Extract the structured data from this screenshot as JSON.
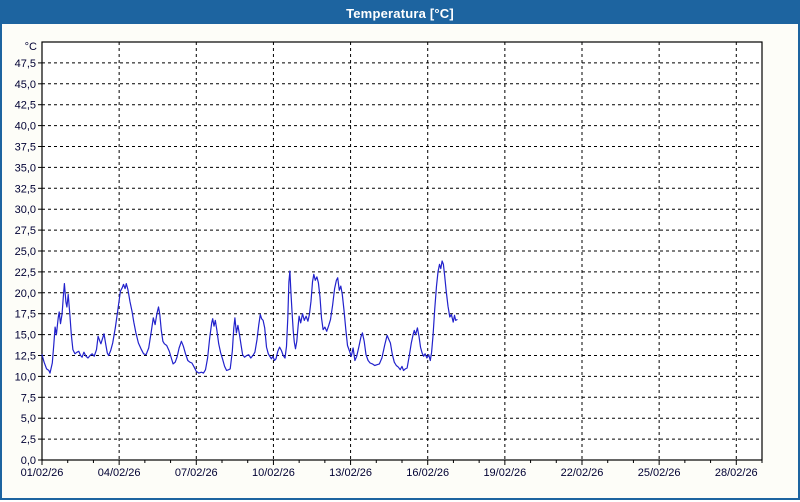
{
  "window": {
    "title": "Temperatura [°C]"
  },
  "colors": {
    "accent": "#1d64a0",
    "title_text": "#ffffff",
    "series_line": "#2222cc",
    "grid": "#000000",
    "frame": "#000000",
    "axis_label": "#000033",
    "panel_bg": "#fdfdf8",
    "plot_bg": "#ffffff"
  },
  "chart_data": {
    "type": "line",
    "title": "Temperatura [°C]",
    "xlabel": "",
    "ylabel": "°C",
    "grid": "dashed",
    "legend": "none",
    "y_axis": {
      "min": 0,
      "max": 50,
      "tick_step": 2.5,
      "unit_label": "°C",
      "tick_labels": [
        "0,0",
        "2,5",
        "5,0",
        "7,5",
        "10,0",
        "12,5",
        "15,0",
        "17,5",
        "20,0",
        "22,5",
        "25,0",
        "27,5",
        "30,0",
        "32,5",
        "35,0",
        "37,5",
        "40,0",
        "42,5",
        "45,0",
        "47,5"
      ]
    },
    "x_axis": {
      "span_days": 28,
      "major_tick_every_days": 3,
      "minor_tick_every_days": 1,
      "tick_labels": [
        "01/02/26",
        "04/02/26",
        "07/02/26",
        "10/02/26",
        "13/02/26",
        "16/02/26",
        "19/02/26",
        "22/02/26",
        "25/02/26",
        "28/02/26"
      ]
    },
    "series": [
      {
        "name": "Temperatura",
        "units": "°C",
        "points_format": "[days_since_01_02_26, celsius]",
        "points": [
          [
            0.0,
            12.6
          ],
          [
            0.08,
            11.7
          ],
          [
            0.18,
            10.9
          ],
          [
            0.27,
            10.7
          ],
          [
            0.31,
            10.4
          ],
          [
            0.4,
            11.6
          ],
          [
            0.46,
            13.8
          ],
          [
            0.51,
            15.9
          ],
          [
            0.56,
            15.0
          ],
          [
            0.63,
            17.0
          ],
          [
            0.67,
            17.7
          ],
          [
            0.72,
            16.3
          ],
          [
            0.78,
            17.5
          ],
          [
            0.83,
            19.5
          ],
          [
            0.87,
            21.1
          ],
          [
            0.93,
            18.9
          ],
          [
            0.97,
            18.3
          ],
          [
            1.02,
            19.8
          ],
          [
            1.08,
            17.5
          ],
          [
            1.14,
            15.0
          ],
          [
            1.2,
            13.2
          ],
          [
            1.28,
            12.7
          ],
          [
            1.36,
            12.9
          ],
          [
            1.43,
            13.0
          ],
          [
            1.5,
            12.5
          ],
          [
            1.56,
            12.3
          ],
          [
            1.63,
            12.9
          ],
          [
            1.71,
            12.4
          ],
          [
            1.79,
            12.2
          ],
          [
            1.87,
            12.5
          ],
          [
            1.95,
            12.7
          ],
          [
            2.03,
            12.4
          ],
          [
            2.12,
            13.2
          ],
          [
            2.18,
            14.8
          ],
          [
            2.25,
            14.2
          ],
          [
            2.29,
            13.9
          ],
          [
            2.36,
            14.6
          ],
          [
            2.41,
            15.1
          ],
          [
            2.48,
            13.8
          ],
          [
            2.54,
            12.8
          ],
          [
            2.59,
            12.5
          ],
          [
            2.67,
            13.1
          ],
          [
            2.75,
            14.0
          ],
          [
            2.85,
            15.8
          ],
          [
            2.95,
            18.0
          ],
          [
            3.05,
            20.2
          ],
          [
            3.12,
            20.6
          ],
          [
            3.17,
            21.0
          ],
          [
            3.23,
            20.5
          ],
          [
            3.28,
            21.1
          ],
          [
            3.34,
            20.4
          ],
          [
            3.42,
            19.0
          ],
          [
            3.5,
            17.8
          ],
          [
            3.57,
            16.5
          ],
          [
            3.65,
            15.2
          ],
          [
            3.75,
            14.0
          ],
          [
            3.85,
            13.3
          ],
          [
            3.95,
            12.7
          ],
          [
            4.05,
            12.6
          ],
          [
            4.15,
            13.4
          ],
          [
            4.25,
            15.4
          ],
          [
            4.33,
            17.0
          ],
          [
            4.4,
            16.2
          ],
          [
            4.47,
            17.5
          ],
          [
            4.53,
            18.3
          ],
          [
            4.58,
            17.4
          ],
          [
            4.64,
            15.5
          ],
          [
            4.7,
            14.2
          ],
          [
            4.76,
            13.9
          ],
          [
            4.85,
            13.7
          ],
          [
            4.95,
            13.0
          ],
          [
            5.03,
            12.2
          ],
          [
            5.1,
            11.5
          ],
          [
            5.18,
            11.7
          ],
          [
            5.25,
            12.3
          ],
          [
            5.33,
            13.4
          ],
          [
            5.42,
            14.2
          ],
          [
            5.5,
            13.6
          ],
          [
            5.58,
            12.7
          ],
          [
            5.67,
            11.9
          ],
          [
            5.75,
            11.7
          ],
          [
            5.83,
            11.6
          ],
          [
            5.92,
            11.1
          ],
          [
            6.0,
            10.6
          ],
          [
            6.1,
            10.4
          ],
          [
            6.2,
            10.5
          ],
          [
            6.28,
            10.4
          ],
          [
            6.36,
            10.8
          ],
          [
            6.44,
            12.2
          ],
          [
            6.52,
            14.6
          ],
          [
            6.6,
            16.4
          ],
          [
            6.64,
            16.9
          ],
          [
            6.69,
            16.0
          ],
          [
            6.74,
            16.7
          ],
          [
            6.8,
            15.5
          ],
          [
            6.87,
            13.9
          ],
          [
            6.95,
            12.8
          ],
          [
            7.02,
            12.1
          ],
          [
            7.1,
            11.2
          ],
          [
            7.18,
            10.7
          ],
          [
            7.26,
            10.8
          ],
          [
            7.32,
            10.9
          ],
          [
            7.4,
            13.0
          ],
          [
            7.46,
            15.8
          ],
          [
            7.5,
            17.0
          ],
          [
            7.56,
            15.2
          ],
          [
            7.62,
            16.1
          ],
          [
            7.68,
            15.0
          ],
          [
            7.74,
            13.8
          ],
          [
            7.8,
            12.6
          ],
          [
            7.88,
            12.3
          ],
          [
            7.96,
            12.5
          ],
          [
            8.04,
            12.6
          ],
          [
            8.12,
            12.2
          ],
          [
            8.2,
            12.5
          ],
          [
            8.28,
            12.9
          ],
          [
            8.36,
            14.4
          ],
          [
            8.43,
            16.2
          ],
          [
            8.49,
            17.4
          ],
          [
            8.54,
            16.9
          ],
          [
            8.6,
            16.7
          ],
          [
            8.66,
            15.8
          ],
          [
            8.73,
            13.5
          ],
          [
            8.8,
            12.7
          ],
          [
            8.86,
            12.4
          ],
          [
            8.92,
            12.1
          ],
          [
            8.98,
            12.4
          ],
          [
            9.04,
            11.9
          ],
          [
            9.1,
            12.1
          ],
          [
            9.17,
            13.0
          ],
          [
            9.24,
            13.5
          ],
          [
            9.31,
            13.1
          ],
          [
            9.38,
            12.5
          ],
          [
            9.45,
            12.2
          ],
          [
            9.51,
            13.6
          ],
          [
            9.56,
            17.0
          ],
          [
            9.6,
            21.3
          ],
          [
            9.64,
            22.6
          ],
          [
            9.68,
            20.1
          ],
          [
            9.72,
            18.0
          ],
          [
            9.77,
            15.5
          ],
          [
            9.81,
            14.1
          ],
          [
            9.86,
            13.3
          ],
          [
            9.91,
            14.2
          ],
          [
            9.96,
            16.0
          ],
          [
            10.0,
            17.2
          ],
          [
            10.06,
            16.4
          ],
          [
            10.13,
            17.5
          ],
          [
            10.2,
            16.7
          ],
          [
            10.27,
            17.2
          ],
          [
            10.34,
            16.6
          ],
          [
            10.4,
            17.4
          ],
          [
            10.46,
            19.0
          ],
          [
            10.52,
            21.3
          ],
          [
            10.57,
            22.2
          ],
          [
            10.63,
            21.5
          ],
          [
            10.69,
            21.9
          ],
          [
            10.75,
            21.2
          ],
          [
            10.81,
            19.5
          ],
          [
            10.87,
            17.0
          ],
          [
            10.93,
            15.6
          ],
          [
            11.0,
            15.9
          ],
          [
            11.07,
            15.4
          ],
          [
            11.14,
            16.0
          ],
          [
            11.22,
            16.8
          ],
          [
            11.3,
            18.5
          ],
          [
            11.38,
            20.5
          ],
          [
            11.45,
            21.5
          ],
          [
            11.5,
            21.8
          ],
          [
            11.56,
            20.3
          ],
          [
            11.62,
            20.8
          ],
          [
            11.68,
            19.8
          ],
          [
            11.75,
            17.8
          ],
          [
            11.82,
            15.5
          ],
          [
            11.88,
            13.7
          ],
          [
            11.95,
            13.1
          ],
          [
            12.03,
            12.4
          ],
          [
            12.1,
            13.4
          ],
          [
            12.17,
            11.9
          ],
          [
            12.24,
            12.4
          ],
          [
            12.32,
            13.5
          ],
          [
            12.4,
            14.7
          ],
          [
            12.46,
            15.2
          ],
          [
            12.53,
            14.2
          ],
          [
            12.6,
            12.6
          ],
          [
            12.68,
            11.9
          ],
          [
            12.76,
            11.6
          ],
          [
            12.85,
            11.5
          ],
          [
            12.94,
            11.3
          ],
          [
            13.03,
            11.4
          ],
          [
            13.12,
            11.5
          ],
          [
            13.22,
            12.2
          ],
          [
            13.33,
            13.8
          ],
          [
            13.42,
            14.9
          ],
          [
            13.49,
            14.4
          ],
          [
            13.55,
            14.0
          ],
          [
            13.62,
            12.7
          ],
          [
            13.7,
            11.7
          ],
          [
            13.78,
            11.3
          ],
          [
            13.86,
            11.1
          ],
          [
            13.93,
            10.8
          ],
          [
            14.0,
            11.2
          ],
          [
            14.06,
            10.7
          ],
          [
            14.13,
            10.9
          ],
          [
            14.2,
            11.0
          ],
          [
            14.28,
            12.4
          ],
          [
            14.36,
            14.0
          ],
          [
            14.43,
            15.0
          ],
          [
            14.48,
            15.5
          ],
          [
            14.53,
            15.0
          ],
          [
            14.6,
            15.8
          ],
          [
            14.66,
            14.8
          ],
          [
            14.72,
            13.5
          ],
          [
            14.78,
            12.8
          ],
          [
            14.84,
            12.4
          ],
          [
            14.9,
            12.7
          ],
          [
            14.97,
            12.2
          ],
          [
            15.04,
            12.6
          ],
          [
            15.1,
            11.9
          ],
          [
            15.15,
            12.9
          ],
          [
            15.21,
            15.0
          ],
          [
            15.27,
            18.0
          ],
          [
            15.34,
            20.8
          ],
          [
            15.4,
            22.5
          ],
          [
            15.46,
            23.4
          ],
          [
            15.51,
            22.9
          ],
          [
            15.56,
            23.8
          ],
          [
            15.61,
            23.4
          ],
          [
            15.66,
            22.0
          ],
          [
            15.72,
            20.2
          ],
          [
            15.79,
            18.4
          ],
          [
            15.86,
            17.1
          ],
          [
            15.92,
            17.4
          ],
          [
            15.99,
            16.5
          ],
          [
            16.04,
            17.3
          ],
          [
            16.09,
            16.7
          ],
          [
            16.14,
            16.8
          ]
        ]
      }
    ]
  }
}
